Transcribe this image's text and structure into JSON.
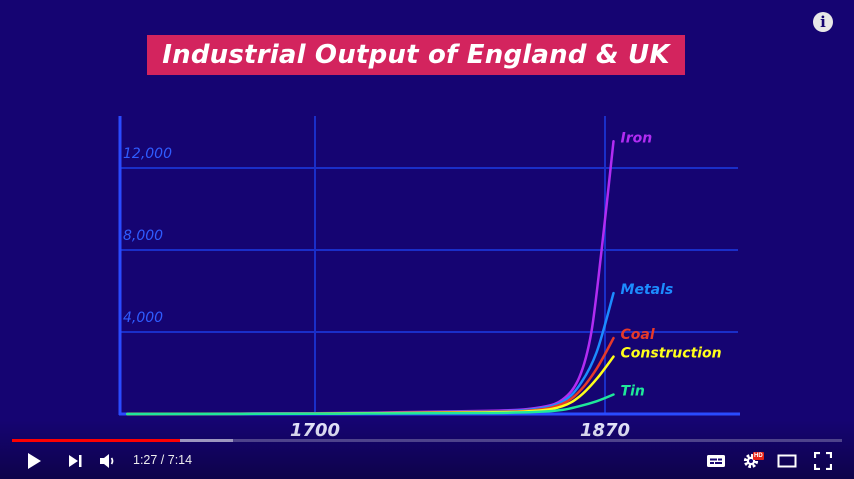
{
  "video": {
    "title_overlay": "Industrial Output of England & UK",
    "info_icon": "info-icon"
  },
  "chart_data": {
    "type": "line",
    "title": "Industrial Output of England & UK",
    "xlabel": "",
    "ylabel": "",
    "x_ticks": [
      "1700",
      "1870"
    ],
    "y_ticks": [
      "4,000",
      "8,000",
      "12,000"
    ],
    "ylim": [
      0,
      13000
    ],
    "grid": true,
    "series": [
      {
        "name": "Iron",
        "color": "#b12cf2",
        "points": [
          [
            1590,
            0
          ],
          [
            1700,
            40
          ],
          [
            1800,
            150
          ],
          [
            1830,
            300
          ],
          [
            1845,
            700
          ],
          [
            1855,
            1800
          ],
          [
            1862,
            4000
          ],
          [
            1868,
            8000
          ],
          [
            1875,
            13300
          ]
        ]
      },
      {
        "name": "Metals",
        "color": "#1c8cff",
        "points": [
          [
            1590,
            0
          ],
          [
            1700,
            30
          ],
          [
            1800,
            120
          ],
          [
            1830,
            250
          ],
          [
            1845,
            600
          ],
          [
            1855,
            1400
          ],
          [
            1865,
            3000
          ],
          [
            1875,
            5900
          ]
        ]
      },
      {
        "name": "Coal",
        "color": "#e63a2a",
        "points": [
          [
            1590,
            0
          ],
          [
            1700,
            25
          ],
          [
            1800,
            100
          ],
          [
            1830,
            200
          ],
          [
            1845,
            500
          ],
          [
            1855,
            1100
          ],
          [
            1865,
            2200
          ],
          [
            1875,
            3700
          ]
        ]
      },
      {
        "name": "Construction",
        "color": "#ffff1a",
        "points": [
          [
            1590,
            0
          ],
          [
            1700,
            20
          ],
          [
            1800,
            80
          ],
          [
            1830,
            160
          ],
          [
            1845,
            380
          ],
          [
            1855,
            850
          ],
          [
            1865,
            1700
          ],
          [
            1875,
            2800
          ]
        ]
      },
      {
        "name": "Tin",
        "color": "#1fe89a",
        "points": [
          [
            1590,
            0
          ],
          [
            1700,
            15
          ],
          [
            1800,
            50
          ],
          [
            1830,
            100
          ],
          [
            1845,
            200
          ],
          [
            1855,
            380
          ],
          [
            1865,
            620
          ],
          [
            1875,
            950
          ]
        ]
      }
    ]
  },
  "player": {
    "progress_fraction": 0.202,
    "buffer_fraction": 0.266,
    "time_display": "1:27 / 7:14",
    "hd_badge": "HD",
    "play_icon": "play-icon",
    "next_icon": "next-icon",
    "volume_icon": "volume-icon",
    "subtitles_icon": "subtitles-icon",
    "settings_icon": "settings-icon",
    "theater_icon": "theater-icon",
    "fullscreen_icon": "fullscreen-icon",
    "progress_color": "#ff0000"
  }
}
